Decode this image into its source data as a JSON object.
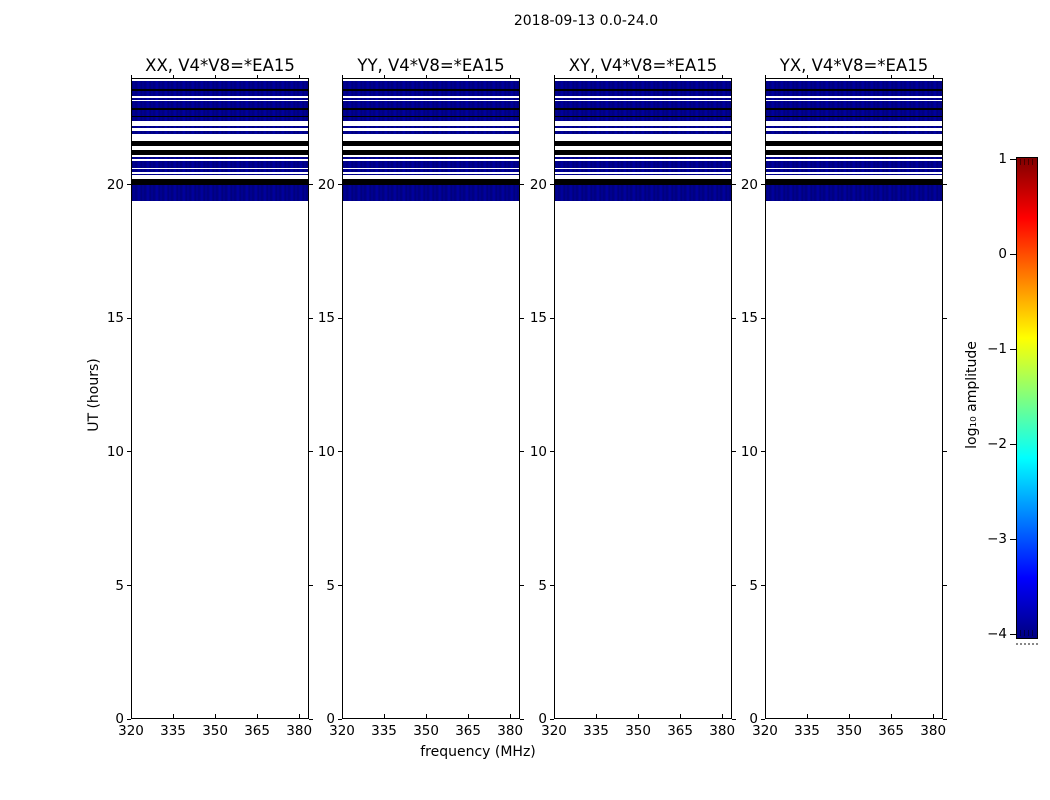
{
  "colors": {
    "background": "#ffffff",
    "frame": "#000000",
    "text": "#000000",
    "band_dark_blue": "#000090",
    "band_black": "#000000",
    "colormap_bottom": "#000080",
    "colormap_top": "#800000"
  },
  "chart_data": {
    "type": "heatmap",
    "title": "2018-09-13 0.0-24.0",
    "panel_titles": [
      "XX, V4*V8=*EA15",
      "YY, V4*V8=*EA15",
      "XY, V4*V8=*EA15",
      "YX, V4*V8=*EA15"
    ],
    "xlabel": "frequency (MHz)",
    "ylabel": "UT (hours)",
    "xlim": [
      320,
      383.5
    ],
    "ylim": [
      0,
      24
    ],
    "x_ticks": [
      320,
      335,
      350,
      365,
      380
    ],
    "y_ticks": [
      0,
      5,
      10,
      15,
      20
    ],
    "grid": false,
    "colormap": "jet",
    "colorbar": {
      "label": "log₁₀ amplitude",
      "range": [
        -4,
        1
      ],
      "ticks": [
        1,
        0,
        -1,
        -2,
        -3,
        -4
      ]
    },
    "note": "Four polarization panels (XX, YY, XY, YX) share an identical pattern of full-width horizontal bands between UT 19.4 and 24.0 at the lowest amplitude level (~10^-4, dark blue) interleaved with black and blank rows; the region below UT 19.4 contains no data (white).",
    "bands_ut": [
      {
        "ut": [
          23.63,
          23.93
        ],
        "level": "dark-blue"
      },
      {
        "ut": [
          23.55,
          23.63
        ],
        "level": "black"
      },
      {
        "ut": [
          23.36,
          23.55
        ],
        "level": "dark-blue"
      },
      {
        "ut": [
          23.23,
          23.3
        ],
        "level": "dark-blue"
      },
      {
        "ut": [
          22.91,
          23.17
        ],
        "level": "dark-blue"
      },
      {
        "ut": [
          22.85,
          22.91
        ],
        "level": "black"
      },
      {
        "ut": [
          22.61,
          22.85
        ],
        "level": "dark-blue"
      },
      {
        "ut": [
          22.57,
          22.61
        ],
        "level": "black"
      },
      {
        "ut": [
          22.42,
          22.57
        ],
        "level": "dark-blue"
      },
      {
        "ut": [
          22.16,
          22.24
        ],
        "level": "dark-blue"
      },
      {
        "ut": [
          21.94,
          22.05
        ],
        "level": "dark-blue"
      },
      {
        "ut": [
          21.49,
          21.68
        ],
        "level": "black"
      },
      {
        "ut": [
          21.15,
          21.34
        ],
        "level": "black"
      },
      {
        "ut": [
          21.0,
          21.08
        ],
        "level": "dark-blue"
      },
      {
        "ut": [
          20.67,
          20.93
        ],
        "level": "dark-blue"
      },
      {
        "ut": [
          20.52,
          20.63
        ],
        "level": "dark-blue"
      },
      {
        "ut": [
          20.39,
          20.46
        ],
        "level": "dark-blue"
      },
      {
        "ut": [
          20.03,
          20.25
        ],
        "level": "black"
      },
      {
        "ut": [
          19.43,
          20.03
        ],
        "level": "dark-blue"
      }
    ]
  }
}
